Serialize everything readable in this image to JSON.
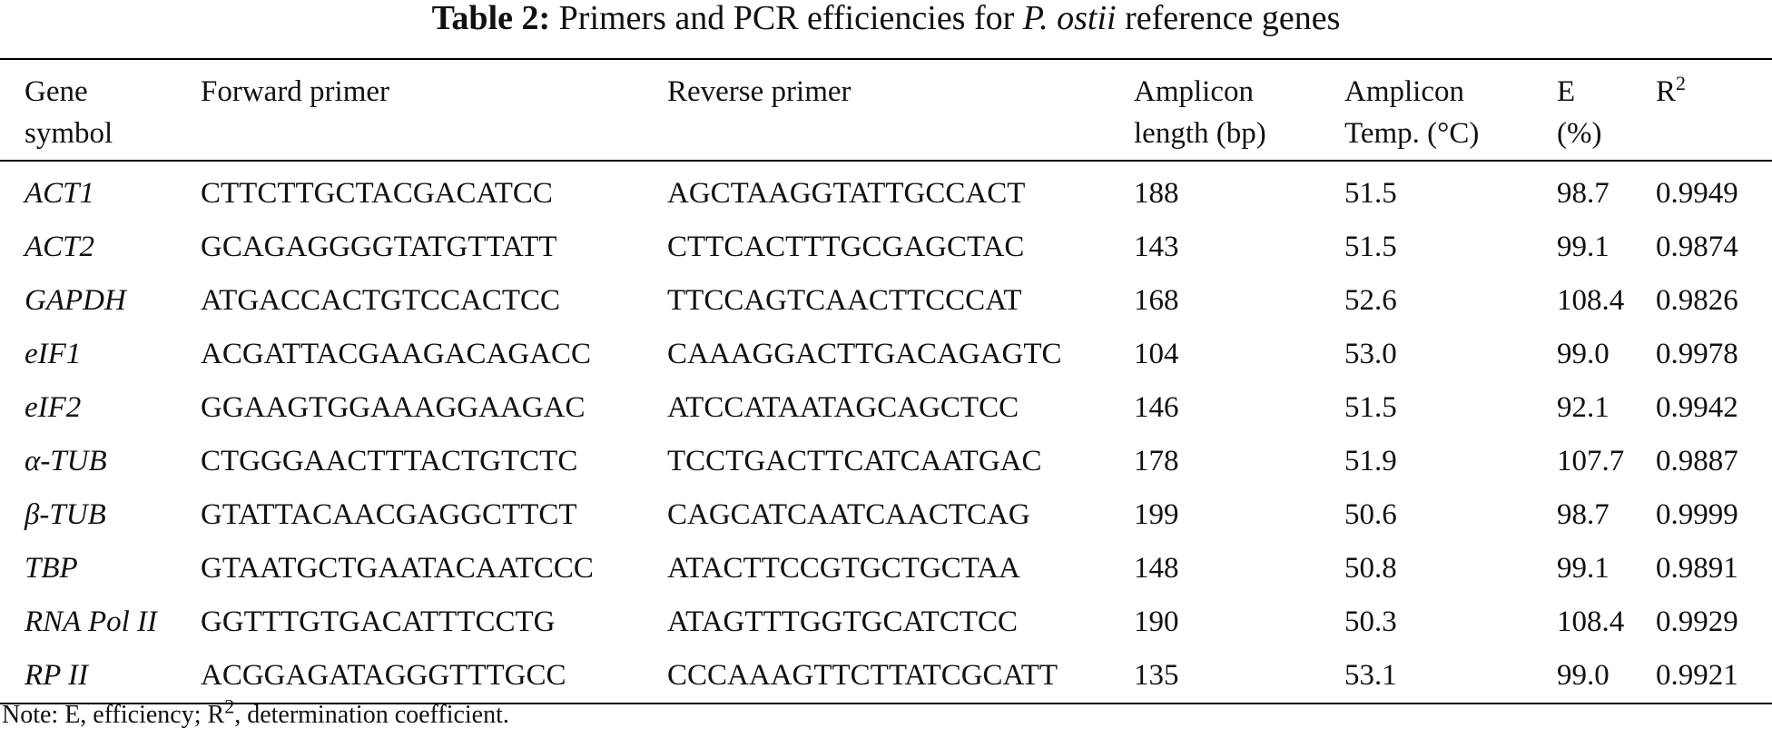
{
  "table": {
    "title_label": "Table 2:",
    "title_prefix": "Primers and PCR efficiencies for",
    "title_species": "P. ostii",
    "title_suffix": "reference genes",
    "headers": [
      {
        "line1": "Gene",
        "line2": "symbol"
      },
      {
        "line1": "Forward primer",
        "line2": ""
      },
      {
        "line1": "Reverse primer",
        "line2": ""
      },
      {
        "line1": "Amplicon",
        "line2": "length (bp)"
      },
      {
        "line1": "Amplicon",
        "line2": "Temp. (°C)"
      },
      {
        "line1": "E",
        "line2": "(%)"
      },
      {
        "line1": "R",
        "sup": "2"
      }
    ],
    "rows": [
      [
        "ACT1",
        "CTTCTTGCTACGACATCC",
        "AGCTAAGGTATTGCCACT",
        "188",
        "51.5",
        "98.7",
        "0.9949"
      ],
      [
        "ACT2",
        "GCAGAGGGGTATGTTATT",
        "CTTCACTTTGCGAGCTAC",
        "143",
        "51.5",
        "99.1",
        "0.9874"
      ],
      [
        "GAPDH",
        "ATGACCACTGTCCACTCC",
        "TTCCAGTCAACTTCCCAT",
        "168",
        "52.6",
        "108.4",
        "0.9826"
      ],
      [
        "eIF1",
        "ACGATTACGAAGACAGACC",
        "CAAAGGACTTGACAGAGTC",
        "104",
        "53.0",
        "99.0",
        "0.9978"
      ],
      [
        "eIF2",
        "GGAAGTGGAAAGGAAGAC",
        "ATCCATAATAGCAGCTCC",
        "146",
        "51.5",
        "92.1",
        "0.9942"
      ],
      [
        "α-TUB",
        "CTGGGAACTTTACTGTCTC",
        "TCCTGACTTCATCAATGAC",
        "178",
        "51.9",
        "107.7",
        "0.9887"
      ],
      [
        "β-TUB",
        "GTATTACAACGAGGCTTCT",
        "CAGCATCAATCAACTCAG",
        "199",
        "50.6",
        "98.7",
        "0.9999"
      ],
      [
        "TBP",
        "GTAATGCTGAATACAATCCC",
        "ATACTTCCGTGCTGCTAA",
        "148",
        "50.8",
        "99.1",
        "0.9891"
      ],
      [
        "RNA Pol II",
        "GGTTTGTGACATTTCCTG",
        "ATAGTTTGGTGCATCTCC",
        "190",
        "50.3",
        "108.4",
        "0.9929"
      ],
      [
        "RP II",
        "ACGGAGATAGGGTTTGCC",
        "CCCAAAGTTCTTATCGCATT",
        "135",
        "53.1",
        "99.0",
        "0.9921"
      ]
    ],
    "note_prefix": "Note: E, efficiency; R",
    "note_sup": "2",
    "note_suffix": ", determination coefficient."
  }
}
